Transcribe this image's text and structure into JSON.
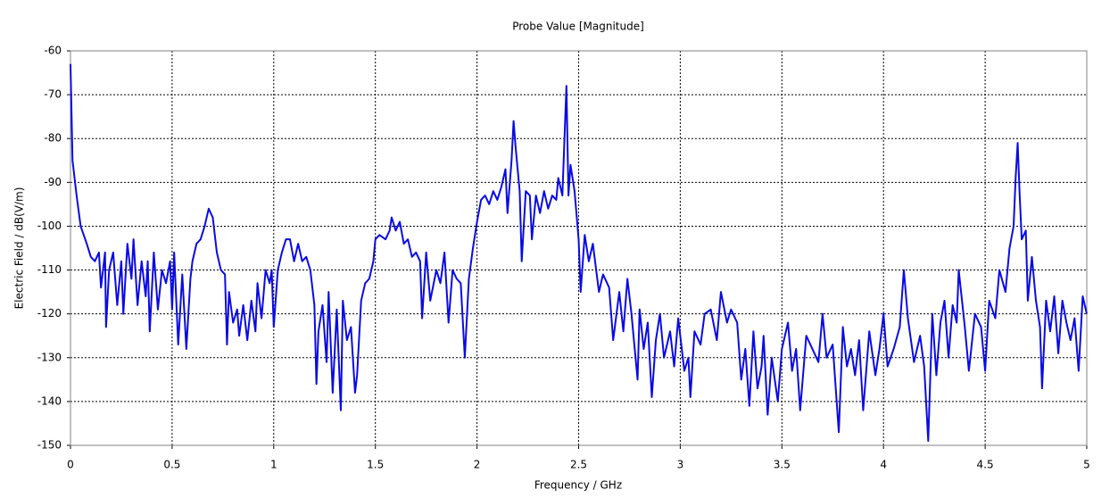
{
  "chart_data": {
    "type": "line",
    "title": "Probe Value [Magnitude]",
    "x_label": "Frequency / GHz",
    "y_label": "Electric Field / dB(V/m)",
    "color": "#0a0ae6",
    "grid": true,
    "xlim": [
      0,
      5
    ],
    "xticks": [
      0,
      0.5,
      1,
      1.5,
      2,
      2.5,
      3,
      3.5,
      4,
      4.5,
      5
    ],
    "ylim": [
      -150,
      -60
    ],
    "yticks": [
      -60,
      -70,
      -80,
      -90,
      -100,
      -110,
      -120,
      -130,
      -140,
      -150
    ],
    "x": [
      0,
      0.01,
      0.03,
      0.05,
      0.08,
      0.1,
      0.12,
      0.14,
      0.15,
      0.17,
      0.175,
      0.19,
      0.21,
      0.23,
      0.25,
      0.26,
      0.28,
      0.3,
      0.31,
      0.33,
      0.35,
      0.37,
      0.38,
      0.39,
      0.41,
      0.43,
      0.45,
      0.47,
      0.49,
      0.5,
      0.51,
      0.53,
      0.55,
      0.57,
      0.59,
      0.6,
      0.62,
      0.64,
      0.66,
      0.68,
      0.7,
      0.72,
      0.74,
      0.76,
      0.77,
      0.78,
      0.8,
      0.82,
      0.83,
      0.85,
      0.87,
      0.89,
      0.91,
      0.92,
      0.94,
      0.96,
      0.98,
      0.99,
      1.0,
      1.02,
      1.04,
      1.06,
      1.08,
      1.1,
      1.12,
      1.14,
      1.16,
      1.18,
      1.2,
      1.21,
      1.22,
      1.24,
      1.26,
      1.27,
      1.29,
      1.31,
      1.33,
      1.34,
      1.36,
      1.38,
      1.4,
      1.41,
      1.43,
      1.45,
      1.47,
      1.49,
      1.5,
      1.52,
      1.55,
      1.57,
      1.58,
      1.6,
      1.62,
      1.64,
      1.66,
      1.68,
      1.7,
      1.72,
      1.73,
      1.75,
      1.77,
      1.8,
      1.82,
      1.84,
      1.86,
      1.88,
      1.9,
      1.92,
      1.94,
      1.96,
      1.98,
      2.0,
      2.02,
      2.04,
      2.06,
      2.08,
      2.1,
      2.12,
      2.14,
      2.15,
      2.17,
      2.18,
      2.19,
      2.21,
      2.22,
      2.24,
      2.26,
      2.27,
      2.29,
      2.31,
      2.33,
      2.35,
      2.37,
      2.39,
      2.4,
      2.42,
      2.44,
      2.45,
      2.46,
      2.48,
      2.5,
      2.51,
      2.53,
      2.55,
      2.57,
      2.6,
      2.62,
      2.65,
      2.67,
      2.7,
      2.72,
      2.74,
      2.76,
      2.79,
      2.8,
      2.82,
      2.84,
      2.86,
      2.88,
      2.9,
      2.92,
      2.95,
      2.97,
      2.99,
      3.02,
      3.04,
      3.05,
      3.07,
      3.1,
      3.12,
      3.15,
      3.18,
      3.2,
      3.23,
      3.25,
      3.28,
      3.3,
      3.32,
      3.34,
      3.36,
      3.38,
      3.4,
      3.41,
      3.43,
      3.45,
      3.48,
      3.5,
      3.53,
      3.55,
      3.57,
      3.59,
      3.62,
      3.65,
      3.68,
      3.7,
      3.72,
      3.75,
      3.78,
      3.8,
      3.82,
      3.84,
      3.86,
      3.88,
      3.9,
      3.93,
      3.96,
      3.98,
      4.0,
      4.02,
      4.05,
      4.08,
      4.1,
      4.12,
      4.15,
      4.18,
      4.2,
      4.22,
      4.24,
      4.26,
      4.28,
      4.3,
      4.32,
      4.34,
      4.36,
      4.37,
      4.4,
      4.42,
      4.45,
      4.48,
      4.5,
      4.52,
      4.55,
      4.57,
      4.6,
      4.62,
      4.64,
      4.65,
      4.66,
      4.67,
      4.68,
      4.7,
      4.71,
      4.73,
      4.75,
      4.77,
      4.78,
      4.8,
      4.82,
      4.84,
      4.86,
      4.88,
      4.9,
      4.92,
      4.94,
      4.96,
      4.98,
      5.0
    ],
    "values": [
      -63,
      -85,
      -93,
      -100,
      -104,
      -107,
      -108,
      -106,
      -114,
      -106,
      -123,
      -110,
      -106,
      -118,
      -108,
      -120,
      -104,
      -112,
      -103,
      -118,
      -108,
      -116,
      -108,
      -124,
      -106,
      -119,
      -110,
      -113,
      -108,
      -119,
      -106,
      -127,
      -111,
      -128,
      -112,
      -108,
      -104,
      -103,
      -100,
      -96,
      -98,
      -106,
      -110,
      -111,
      -127,
      -115,
      -122,
      -119,
      -125,
      -118,
      -126,
      -117,
      -124,
      -113,
      -121,
      -110,
      -113,
      -110,
      -123,
      -110,
      -106,
      -103,
      -103,
      -108,
      -104,
      -108,
      -107,
      -110,
      -118,
      -136,
      -124,
      -118,
      -131,
      -115,
      -138,
      -119,
      -142,
      -117,
      -126,
      -123,
      -138,
      -134,
      -117,
      -113,
      -112,
      -108,
      -103,
      -102,
      -103,
      -101,
      -98,
      -101,
      -99,
      -104,
      -103,
      -107,
      -106,
      -108,
      -121,
      -106,
      -117,
      -110,
      -113,
      -106,
      -122,
      -110,
      -112,
      -113,
      -130,
      -112,
      -105,
      -99,
      -94,
      -93,
      -95,
      -92,
      -94,
      -91,
      -87,
      -97,
      -85,
      -76,
      -82,
      -92,
      -108,
      -92,
      -93,
      -103,
      -93,
      -97,
      -92,
      -96,
      -93,
      -94,
      -89,
      -93,
      -68,
      -93,
      -86,
      -92,
      -103,
      -115,
      -102,
      -108,
      -104,
      -115,
      -111,
      -114,
      -126,
      -115,
      -124,
      -112,
      -120,
      -135,
      -119,
      -128,
      -122,
      -139,
      -126,
      -120,
      -130,
      -124,
      -132,
      -121,
      -133,
      -130,
      -139,
      -124,
      -127,
      -120,
      -119,
      -126,
      -115,
      -122,
      -119,
      -122,
      -135,
      -128,
      -141,
      -124,
      -137,
      -132,
      -125,
      -143,
      -130,
      -140,
      -128,
      -122,
      -133,
      -128,
      -142,
      -125,
      -128,
      -131,
      -120,
      -130,
      -127,
      -147,
      -123,
      -132,
      -128,
      -134,
      -126,
      -142,
      -124,
      -134,
      -128,
      -120,
      -132,
      -128,
      -123,
      -110,
      -121,
      -131,
      -125,
      -132,
      -149,
      -120,
      -134,
      -122,
      -117,
      -130,
      -118,
      -122,
      -110,
      -123,
      -133,
      -120,
      -123,
      -133,
      -117,
      -121,
      -110,
      -115,
      -105,
      -100,
      -89,
      -81,
      -93,
      -103,
      -101,
      -117,
      -107,
      -117,
      -123,
      -137,
      -117,
      -124,
      -116,
      -129,
      -117,
      -122,
      -126,
      -121,
      -133,
      -116,
      -120
    ]
  }
}
